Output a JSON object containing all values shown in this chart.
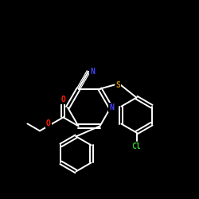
{
  "background_color": "#000000",
  "white": "#ffffff",
  "colors": {
    "N": "#4444ff",
    "O": "#ff2200",
    "S": "#cc8800",
    "Cl": "#33cc33",
    "C": "#ffffff",
    "bond": "#ffffff"
  },
  "figsize": [
    2.5,
    2.5
  ],
  "dpi": 100
}
